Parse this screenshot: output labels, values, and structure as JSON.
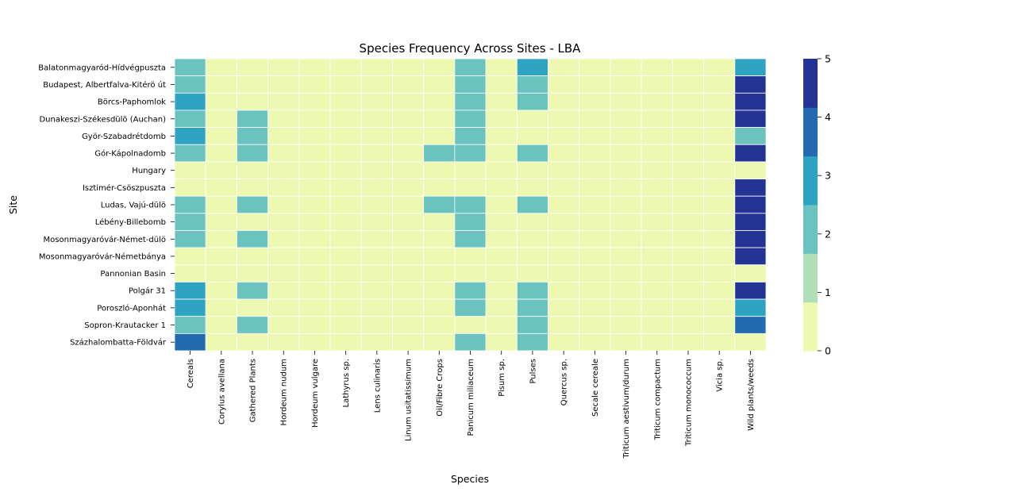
{
  "chart_data": {
    "type": "heatmap",
    "title": "Species Frequency Across Sites - LBA",
    "xlabel": "Species",
    "ylabel": "Site",
    "rows": [
      "Balatonmagyaród-Hídvégpuszta",
      "Budapest, Albertfalva-Kitérö út",
      "Börcs-Paphomlok",
      "Dunakeszi-Székesdülö (Auchan)",
      "Györ-Szabadrétdomb",
      "Gór-Kápolnadomb",
      "Hungary",
      "Isztimér-Csöszpuszta",
      "Ludas, Vajú-dülö",
      "Lébény-Billebomb",
      "Mosonmagyaróvár-Német-dülö",
      "Mosonmagyaróvár-Németbánya",
      "Pannonian Basin",
      "Polgár 31",
      "Poroszló-Aponhát",
      "Sopron-Krautacker 1",
      "Százhalombatta-Földvár"
    ],
    "columns": [
      "Cereals",
      "Corylus avellana",
      "Gathered Plants",
      "Hordeum nudum",
      "Hordeum vulgare",
      "Lathyrus sp.",
      "Lens culinaris",
      "Linum usitatissimum",
      "Oil/Fibre Crops",
      "Panicum miliaceum",
      "Pisum sp.",
      "Pulses",
      "Quercus sp.",
      "Secale cereale",
      "Triticum aestivum/durum",
      "Triticum compactum",
      "Triticum monococcum",
      "Vicia sp.",
      "Wild plants/weeds"
    ],
    "values": [
      [
        2,
        0,
        0,
        0,
        0,
        0,
        0,
        0,
        0,
        2,
        0,
        3,
        0,
        0,
        0,
        0,
        0,
        0,
        3
      ],
      [
        2,
        0,
        0,
        0,
        0,
        0,
        0,
        0,
        0,
        2,
        0,
        2,
        0,
        0,
        0,
        0,
        0,
        0,
        5
      ],
      [
        3,
        0,
        0,
        0,
        0,
        0,
        0,
        0,
        0,
        2,
        0,
        2,
        0,
        0,
        0,
        0,
        0,
        0,
        5
      ],
      [
        2,
        0,
        2,
        0,
        0,
        0,
        0,
        0,
        0,
        2,
        0,
        0,
        0,
        0,
        0,
        0,
        0,
        0,
        5
      ],
      [
        3,
        0,
        2,
        0,
        0,
        0,
        0,
        0,
        0,
        2,
        0,
        0,
        0,
        0,
        0,
        0,
        0,
        0,
        2
      ],
      [
        2,
        0,
        2,
        0,
        0,
        0,
        0,
        0,
        2,
        2,
        0,
        2,
        0,
        0,
        0,
        0,
        0,
        0,
        5
      ],
      [
        0,
        0,
        0,
        0,
        0,
        0,
        0,
        0,
        0,
        0,
        0,
        0,
        0,
        0,
        0,
        0,
        0,
        0,
        0
      ],
      [
        0,
        0,
        0,
        0,
        0,
        0,
        0,
        0,
        0,
        0,
        0,
        0,
        0,
        0,
        0,
        0,
        0,
        0,
        5
      ],
      [
        2,
        0,
        2,
        0,
        0,
        0,
        0,
        0,
        2,
        2,
        0,
        2,
        0,
        0,
        0,
        0,
        0,
        0,
        5
      ],
      [
        2,
        0,
        0,
        0,
        0,
        0,
        0,
        0,
        0,
        2,
        0,
        0,
        0,
        0,
        0,
        0,
        0,
        0,
        5
      ],
      [
        2,
        0,
        2,
        0,
        0,
        0,
        0,
        0,
        0,
        2,
        0,
        0,
        0,
        0,
        0,
        0,
        0,
        0,
        5
      ],
      [
        0,
        0,
        0,
        0,
        0,
        0,
        0,
        0,
        0,
        0,
        0,
        0,
        0,
        0,
        0,
        0,
        0,
        0,
        5
      ],
      [
        0,
        0,
        0,
        0,
        0,
        0,
        0,
        0,
        0,
        0,
        0,
        0,
        0,
        0,
        0,
        0,
        0,
        0,
        0
      ],
      [
        3,
        0,
        2,
        0,
        0,
        0,
        0,
        0,
        0,
        2,
        0,
        2,
        0,
        0,
        0,
        0,
        0,
        0,
        5
      ],
      [
        3,
        0,
        0,
        0,
        0,
        0,
        0,
        0,
        0,
        2,
        0,
        2,
        0,
        0,
        0,
        0,
        0,
        0,
        3
      ],
      [
        2,
        0,
        2,
        0,
        0,
        0,
        0,
        0,
        0,
        0,
        0,
        2,
        0,
        0,
        0,
        0,
        0,
        0,
        4
      ],
      [
        4,
        0,
        0,
        0,
        0,
        0,
        0,
        0,
        0,
        2,
        0,
        2,
        0,
        0,
        0,
        0,
        0,
        0,
        0
      ]
    ],
    "colorbar": {
      "range": [
        0,
        5
      ],
      "ticks": [
        "0",
        "1",
        "2",
        "3",
        "4",
        "5"
      ],
      "bins": [
        "#edf8b1",
        "#b1dfb7",
        "#6ac3be",
        "#2ea3c2",
        "#226bb0",
        "#253494"
      ]
    },
    "grid": false
  }
}
